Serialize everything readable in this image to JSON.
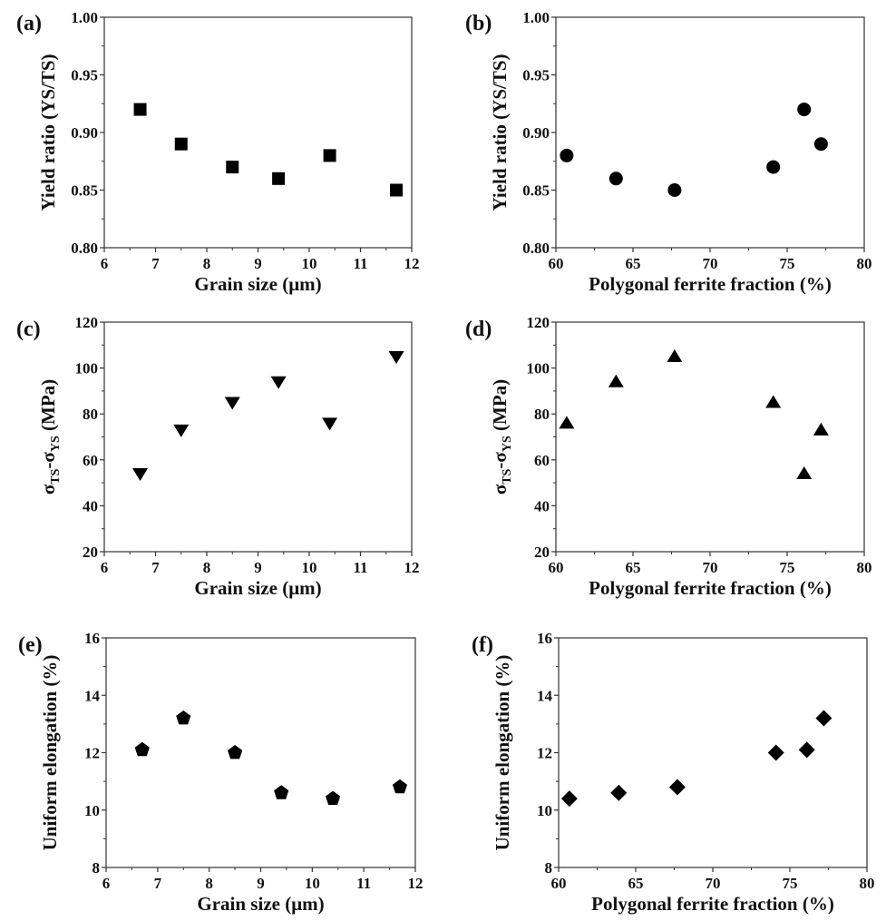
{
  "chart_data": [
    {
      "panel": "(a)",
      "type": "scatter",
      "marker": "square",
      "xlabel": "Grain size (μm)",
      "ylabel": "Yield ratio (YS/TS)",
      "xlim": [
        6,
        12
      ],
      "ylim": [
        0.8,
        1.0
      ],
      "xticks": [
        "6",
        "7",
        "8",
        "9",
        "10",
        "11",
        "12"
      ],
      "yticks": [
        "0.80",
        "0.85",
        "0.90",
        "0.95",
        "1.00"
      ],
      "x": [
        6.7,
        7.5,
        8.5,
        9.4,
        10.4,
        11.7
      ],
      "y": [
        0.92,
        0.89,
        0.87,
        0.86,
        0.88,
        0.85
      ]
    },
    {
      "panel": "(b)",
      "type": "scatter",
      "marker": "circle",
      "xlabel": "Polygonal ferrite fraction (%)",
      "ylabel": "Yield ratio (YS/TS)",
      "xlim": [
        60,
        80
      ],
      "ylim": [
        0.8,
        1.0
      ],
      "xticks": [
        "60",
        "65",
        "70",
        "75",
        "80"
      ],
      "yticks": [
        "0.80",
        "0.85",
        "0.90",
        "0.95",
        "1.00"
      ],
      "x": [
        60.7,
        63.9,
        67.7,
        74.1,
        76.1,
        77.2
      ],
      "y": [
        0.88,
        0.86,
        0.85,
        0.87,
        0.92,
        0.89
      ]
    },
    {
      "panel": "(c)",
      "type": "scatter",
      "marker": "triangle-down",
      "xlabel": "Grain size (μm)",
      "ylabel": "σTS-σYS (MPa)",
      "ylabel_parts": {
        "sym": "σ",
        "sub1": "TS",
        "dash": "-",
        "sub2": "YS",
        "unit": " (MPa)"
      },
      "xlim": [
        6,
        12
      ],
      "ylim": [
        20,
        120
      ],
      "xticks": [
        "6",
        "7",
        "8",
        "9",
        "10",
        "11",
        "12"
      ],
      "yticks": [
        "20",
        "40",
        "60",
        "80",
        "100",
        "120"
      ],
      "x": [
        6.7,
        7.5,
        8.5,
        9.4,
        10.4,
        11.7
      ],
      "y": [
        54,
        73,
        85,
        94,
        76,
        105
      ]
    },
    {
      "panel": "(d)",
      "type": "scatter",
      "marker": "triangle-up",
      "xlabel": "Polygonal ferrite fraction (%)",
      "ylabel": "σTS-σYS (MPa)",
      "ylabel_parts": {
        "sym": "σ",
        "sub1": "TS",
        "dash": "-",
        "sub2": "YS",
        "unit": " (MPa)"
      },
      "xlim": [
        60,
        80
      ],
      "ylim": [
        20,
        120
      ],
      "xticks": [
        "60",
        "65",
        "70",
        "75",
        "80"
      ],
      "yticks": [
        "20",
        "40",
        "60",
        "80",
        "100",
        "120"
      ],
      "x": [
        60.7,
        63.9,
        67.7,
        74.1,
        76.1,
        77.2
      ],
      "y": [
        76,
        94,
        105,
        85,
        54,
        73
      ]
    },
    {
      "panel": "(e)",
      "type": "scatter",
      "marker": "pentagon",
      "xlabel": "Grain size (μm)",
      "ylabel": "Uniform elongation (%)",
      "xlim": [
        6,
        12
      ],
      "ylim": [
        8,
        16
      ],
      "xticks": [
        "6",
        "7",
        "8",
        "9",
        "10",
        "11",
        "12"
      ],
      "yticks": [
        "8",
        "10",
        "12",
        "14",
        "16"
      ],
      "x": [
        6.7,
        7.5,
        8.5,
        9.4,
        10.4,
        11.7
      ],
      "y": [
        12.1,
        13.2,
        12.0,
        10.6,
        10.4,
        10.8
      ]
    },
    {
      "panel": "(f)",
      "type": "scatter",
      "marker": "diamond",
      "xlabel": "Polygonal ferrite fraction (%)",
      "ylabel": "Uniform elongation (%)",
      "xlim": [
        60,
        80
      ],
      "ylim": [
        8,
        16
      ],
      "xticks": [
        "60",
        "65",
        "70",
        "75",
        "80"
      ],
      "yticks": [
        "8",
        "10",
        "12",
        "14",
        "16"
      ],
      "x": [
        60.7,
        63.9,
        67.7,
        74.1,
        76.1,
        77.2
      ],
      "y": [
        10.4,
        10.6,
        10.8,
        12.0,
        12.1,
        13.2
      ]
    }
  ]
}
